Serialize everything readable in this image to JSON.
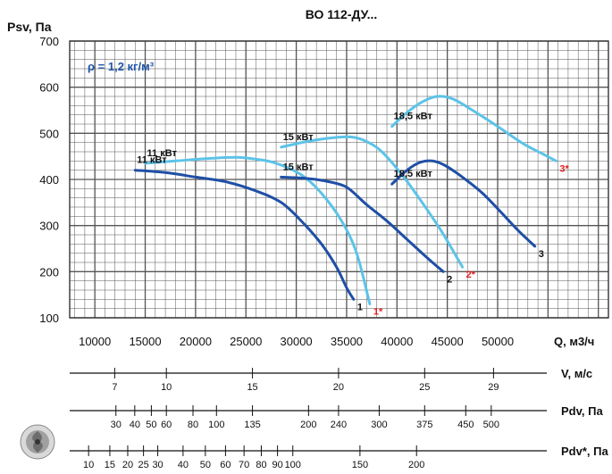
{
  "chart_data": {
    "type": "line",
    "title": "ВО 112-ДУ...",
    "ylabel": "Psv, Па",
    "xlabel": "Q, м3/ч",
    "density_note": "ρ = 1,2 кг/м³",
    "xlim": [
      7500,
      61000
    ],
    "ylim": [
      100,
      700
    ],
    "x_ticks": [
      10000,
      15000,
      20000,
      25000,
      30000,
      35000,
      40000,
      45000,
      50000
    ],
    "y_ticks": [
      100,
      200,
      300,
      400,
      500,
      600,
      700
    ],
    "grid": true,
    "colors": {
      "dark": "#1f4fa6",
      "light": "#5cc3e8",
      "red": "#e02020",
      "grid": "#555555"
    },
    "series": [
      {
        "name": "1",
        "power_label": "11 кВт",
        "color": "dark",
        "label_color": "black",
        "x": [
          14000,
          17000,
          20000,
          23000,
          26000,
          28500,
          30500,
          32500,
          34000,
          35000,
          35700
        ],
        "y": [
          420,
          415,
          405,
          395,
          375,
          350,
          310,
          260,
          210,
          165,
          140
        ]
      },
      {
        "name": "1*",
        "power_label": "11 кВт",
        "color": "light",
        "label_color": "red",
        "x": [
          15000,
          18000,
          21000,
          24000,
          26000,
          28000,
          30500,
          32500,
          34500,
          36000,
          37300
        ],
        "y": [
          435,
          440,
          445,
          448,
          444,
          435,
          410,
          370,
          310,
          240,
          130
        ]
      },
      {
        "name": "2",
        "power_label": "15 кВт",
        "color": "dark",
        "label_color": "black",
        "x": [
          28500,
          30500,
          32500,
          34500,
          35500,
          37000,
          39000,
          41000,
          43000,
          44600
        ],
        "y": [
          405,
          403,
          398,
          388,
          375,
          345,
          310,
          270,
          230,
          200
        ]
      },
      {
        "name": "2*",
        "power_label": "15 кВт",
        "color": "light",
        "label_color": "red",
        "x": [
          28500,
          31000,
          33500,
          35500,
          37000,
          38500,
          40500,
          42500,
          44500,
          46500
        ],
        "y": [
          470,
          482,
          490,
          492,
          482,
          460,
          410,
          350,
          285,
          210
        ]
      },
      {
        "name": "3",
        "power_label": "18,5 кВт",
        "color": "dark",
        "label_color": "black",
        "x": [
          39500,
          41000,
          42300,
          43500,
          44800,
          46500,
          48500,
          50500,
          52000,
          53700
        ],
        "y": [
          390,
          420,
          437,
          440,
          430,
          405,
          370,
          325,
          290,
          255
        ]
      },
      {
        "name": "3*",
        "power_label": "18,5 кВт",
        "color": "light",
        "label_color": "red",
        "x": [
          39500,
          41000,
          42500,
          44000,
          45500,
          47500,
          50000,
          52500,
          54500,
          55800
        ],
        "y": [
          515,
          545,
          568,
          580,
          575,
          550,
          515,
          478,
          455,
          440
        ]
      }
    ]
  },
  "velocity_scale": {
    "unit": "V, м/с",
    "labels": [
      {
        "v": 7,
        "text": "7"
      },
      {
        "v": 10,
        "text": "10"
      },
      {
        "v": 15,
        "text": "15"
      },
      {
        "v": 20,
        "text": "20"
      },
      {
        "v": 25,
        "text": "25"
      },
      {
        "v": 29,
        "text": "29"
      }
    ]
  },
  "pdv_scale": {
    "unit": "Pdv, Па",
    "labels": [
      {
        "v": 30,
        "text": "30"
      },
      {
        "v": 40,
        "text": "40"
      },
      {
        "v": 50,
        "text": "50"
      },
      {
        "v": 60,
        "text": "60"
      },
      {
        "v": 80,
        "text": "80"
      },
      {
        "v": 100,
        "text": "100"
      },
      {
        "v": 135,
        "text": "135"
      },
      {
        "v": 200,
        "text": "200"
      },
      {
        "v": 240,
        "text": "240"
      },
      {
        "v": 300,
        "text": "300"
      },
      {
        "v": 375,
        "text": "375"
      },
      {
        "v": 450,
        "text": "450"
      },
      {
        "v": 500,
        "text": "500"
      }
    ]
  },
  "pdv_star_scale": {
    "unit": "Pdv*, Па",
    "labels": [
      {
        "v": 10,
        "text": "10"
      },
      {
        "v": 15,
        "text": "15"
      },
      {
        "v": 20,
        "text": "20"
      },
      {
        "v": 25,
        "text": "25"
      },
      {
        "v": 30,
        "text": "30"
      },
      {
        "v": 40,
        "text": "40"
      },
      {
        "v": 50,
        "text": "50"
      },
      {
        "v": 60,
        "text": "60"
      },
      {
        "v": 70,
        "text": "70"
      },
      {
        "v": 80,
        "text": "80"
      },
      {
        "v": 90,
        "text": "90"
      },
      {
        "v": 100,
        "text": "100"
      },
      {
        "v": 150,
        "text": "150"
      },
      {
        "v": 200,
        "text": "200"
      }
    ]
  },
  "fan_icon": "fan-logo-icon"
}
